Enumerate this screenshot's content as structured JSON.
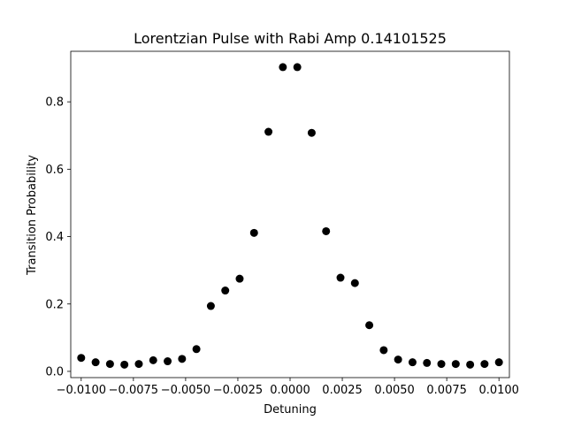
{
  "chart_data": {
    "type": "scatter",
    "title": "Lorentzian Pulse with Rabi Amp 0.14101525",
    "xlabel": "Detuning",
    "ylabel": "Transition Probability",
    "xlim": [
      -0.0105,
      0.0105
    ],
    "ylim": [
      -0.0185,
      0.95
    ],
    "grid": false,
    "legend": "none",
    "marker_color": "#000000",
    "x_ticks": [
      {
        "value": -0.01,
        "label": "−0.0100"
      },
      {
        "value": -0.0075,
        "label": "−0.0075"
      },
      {
        "value": -0.005,
        "label": "−0.0050"
      },
      {
        "value": -0.0025,
        "label": "−0.0025"
      },
      {
        "value": 0.0,
        "label": "0.0000"
      },
      {
        "value": 0.0025,
        "label": "0.0025"
      },
      {
        "value": 0.005,
        "label": "0.0050"
      },
      {
        "value": 0.0075,
        "label": "0.0075"
      },
      {
        "value": 0.01,
        "label": "0.0100"
      }
    ],
    "y_ticks": [
      {
        "value": 0.0,
        "label": "0.0"
      },
      {
        "value": 0.2,
        "label": "0.2"
      },
      {
        "value": 0.4,
        "label": "0.4"
      },
      {
        "value": 0.6,
        "label": "0.6"
      },
      {
        "value": 0.8,
        "label": "0.8"
      }
    ],
    "series": [
      {
        "x": [
          -0.01,
          -0.00931,
          -0.008621,
          -0.007931,
          -0.007241,
          -0.006552,
          -0.005862,
          -0.005172,
          -0.004483,
          -0.003793,
          -0.003103,
          -0.002414,
          -0.001724,
          -0.001034,
          -0.000345,
          0.000345,
          0.001034,
          0.001724,
          0.002414,
          0.003103,
          0.003793,
          0.004483,
          0.005172,
          0.005862,
          0.006552,
          0.007241,
          0.007931,
          0.008621,
          0.00931,
          0.01
        ],
        "y": [
          0.04,
          0.027,
          0.022,
          0.02,
          0.022,
          0.033,
          0.03,
          0.037,
          0.066,
          0.194,
          0.24,
          0.275,
          0.411,
          0.711,
          0.903,
          0.903,
          0.708,
          0.416,
          0.278,
          0.262,
          0.137,
          0.063,
          0.035,
          0.027,
          0.025,
          0.022,
          0.022,
          0.02,
          0.022,
          0.027
        ]
      }
    ]
  }
}
